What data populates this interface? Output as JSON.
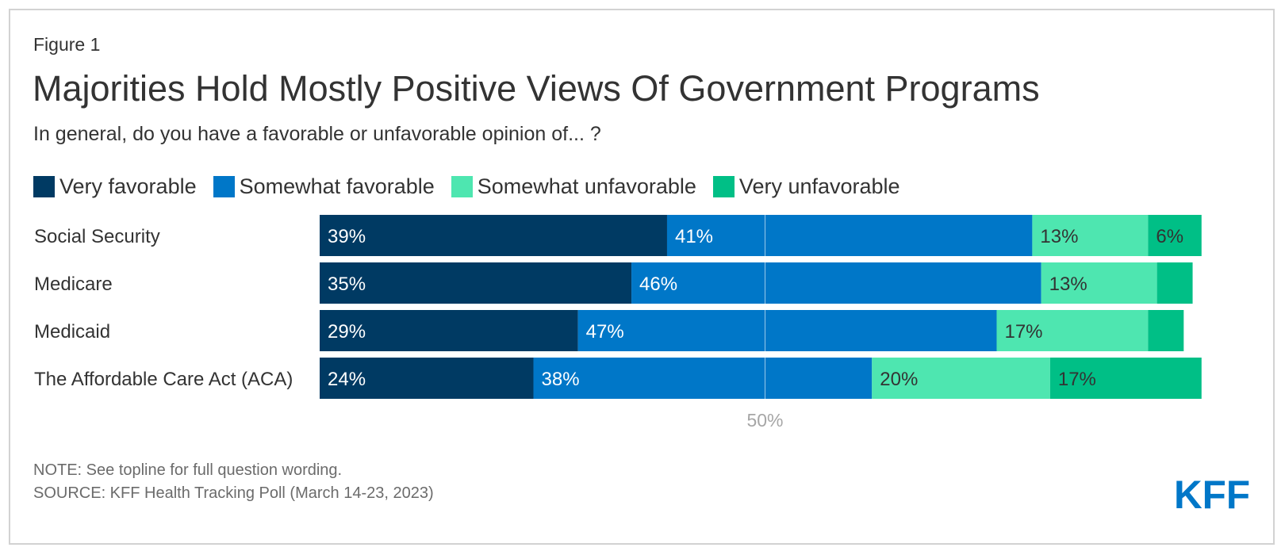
{
  "figure_label": "Figure 1",
  "title": "Majorities Hold Mostly Positive Views Of Government Programs",
  "subtitle": "In general, do you have a favorable or unfavorable opinion of... ?",
  "note": "NOTE: See topline for full question wording.",
  "source": "SOURCE: KFF Health Tracking Poll (March 14-23, 2023)",
  "logo_text": "KFF",
  "colors": {
    "very_favorable": "#003a63",
    "somewhat_favorable": "#0077c8",
    "somewhat_unfavorable": "#4ee6b0",
    "very_unfavorable": "#00bf86",
    "brand": "#0077c8"
  },
  "chart_data": {
    "type": "bar",
    "orientation": "horizontal",
    "stacked": true,
    "categories": [
      "Social Security",
      "Medicare",
      "Medicaid",
      "The Affordable Care Act (ACA)"
    ],
    "series": [
      {
        "name": "Very favorable",
        "color": "#003a63",
        "values": [
          39,
          35,
          29,
          24
        ],
        "labels": [
          "39%",
          "35%",
          "29%",
          "24%"
        ]
      },
      {
        "name": "Somewhat favorable",
        "color": "#0077c8",
        "values": [
          41,
          46,
          47,
          38
        ],
        "labels": [
          "41%",
          "46%",
          "47%",
          "38%"
        ]
      },
      {
        "name": "Somewhat unfavorable",
        "color": "#4ee6b0",
        "values": [
          13,
          13,
          17,
          20
        ],
        "labels": [
          "13%",
          "13%",
          "17%",
          "20%"
        ]
      },
      {
        "name": "Very unfavorable",
        "color": "#00bf86",
        "values": [
          6,
          4,
          4,
          17
        ],
        "labels": [
          "6%",
          "",
          "",
          "17%"
        ]
      }
    ],
    "xlim": [
      0,
      100
    ],
    "reference_line": {
      "value": 50,
      "label": "50%"
    },
    "legend_position": "top-left",
    "grid": false
  }
}
